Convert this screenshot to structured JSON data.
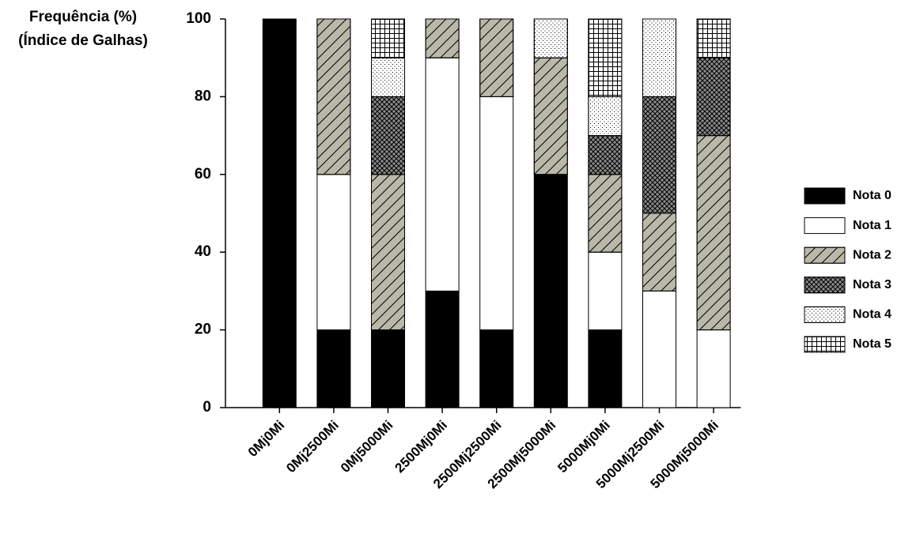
{
  "chart_data": {
    "type": "stacked-bar",
    "y_label_lines": [
      "Frequência (%)",
      "(Índice de Galhas)"
    ],
    "categories": [
      "0Mj0Mi",
      "0Mj2500Mi",
      "0Mj5000Mi",
      "2500Mj0Mi",
      "2500Mj2500Mi",
      "2500Mj5000Mi",
      "5000Mj0Mi",
      "5000Mj2500Mi",
      "5000Mj5000Mi"
    ],
    "series": [
      {
        "name": "Nota 0",
        "color": "#000000",
        "pattern": "solid",
        "values": [
          100,
          20,
          20,
          30,
          20,
          60,
          20,
          0,
          0
        ]
      },
      {
        "name": "Nota 1",
        "color": "#ffffff",
        "pattern": "solid",
        "values": [
          0,
          40,
          0,
          60,
          60,
          0,
          20,
          30,
          20
        ]
      },
      {
        "name": "Nota 2",
        "color": "#b9b8a9",
        "pattern": "hatch",
        "values": [
          0,
          40,
          40,
          10,
          20,
          30,
          20,
          20,
          50
        ]
      },
      {
        "name": "Nota 3",
        "color": "#8a8a8a",
        "pattern": "crosshatch",
        "values": [
          0,
          0,
          20,
          0,
          0,
          0,
          10,
          30,
          20
        ]
      },
      {
        "name": "Nota 4",
        "color": "#ffffff",
        "pattern": "dots",
        "values": [
          0,
          0,
          10,
          0,
          0,
          10,
          10,
          20,
          0
        ]
      },
      {
        "name": "Nota 5",
        "color": "#ffffff",
        "pattern": "grid",
        "values": [
          0,
          0,
          10,
          0,
          0,
          0,
          20,
          0,
          10
        ]
      }
    ],
    "ylim": [
      0,
      100
    ],
    "yticks": [
      0,
      20,
      40,
      60,
      80,
      100
    ],
    "legend": "right"
  }
}
